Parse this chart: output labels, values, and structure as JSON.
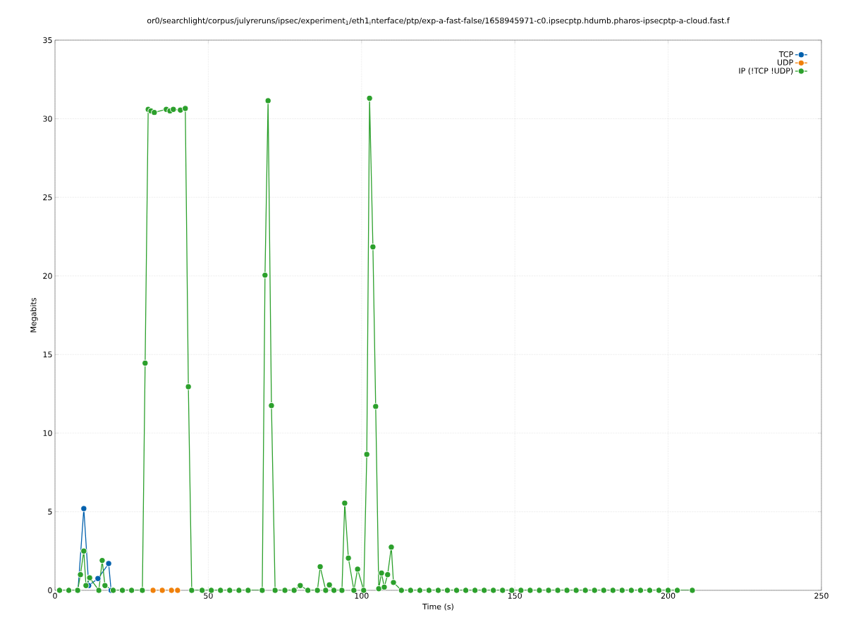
{
  "chart_data": {
    "type": "line",
    "title": "or0/searchlight/corpus/julyreruns/ipsec/experiment$_{1}$/eth1$_{i}$nterface/ptp/exp-a-fast-false/1658945971-c0.ipsecptp.hdumb.pharos-ipsecptp-a-cloud.fast.f",
    "xlabel": "Time (s)",
    "ylabel": "Megabits",
    "xlim": [
      0,
      250
    ],
    "ylim": [
      0,
      35
    ],
    "xticks": [
      0,
      50,
      100,
      150,
      200,
      250
    ],
    "yticks": [
      0,
      5,
      10,
      15,
      20,
      25,
      30,
      35
    ],
    "grid": true,
    "legend": "top right",
    "marker": "circle",
    "line_style": "solid",
    "series": [
      {
        "name": "TCP",
        "color": "#0060ad",
        "x": [
          7.5,
          9.4,
          11,
          14,
          17.5,
          18.3
        ],
        "values": [
          0,
          5.2,
          0.3,
          0.75,
          1.7,
          0
        ]
      },
      {
        "name": "UDP",
        "color": "#f0800a",
        "x": [
          32,
          35,
          38,
          40
        ],
        "values": [
          0,
          0,
          0,
          0
        ]
      },
      {
        "name": "IP (!TCP  !UDP)",
        "color": "#2ca02c",
        "x": [
          1.5,
          4.5,
          7.4,
          8.3,
          9.4,
          10.1,
          11.3,
          14.3,
          15.4,
          16.3,
          19,
          22,
          25,
          28.5,
          29.4,
          30.4,
          31.3,
          32.4,
          36.3,
          37.5,
          38.6,
          40.9,
          42.5,
          43.5,
          44.6,
          48,
          51,
          54,
          57,
          60,
          63,
          67.6,
          68.5,
          69.5,
          70.6,
          71.8,
          75,
          78,
          80,
          82.5,
          85.6,
          86.5,
          88.3,
          89.5,
          91,
          93.6,
          94.5,
          95.7,
          97.5,
          98.7,
          100.7,
          101.7,
          102.6,
          103.7,
          104.6,
          105.6,
          106.5,
          107.4,
          108.5,
          109.7,
          110.4,
          113,
          116,
          119,
          122,
          125,
          128,
          131,
          134,
          137,
          140,
          143,
          146,
          149,
          152,
          155,
          158,
          161,
          164,
          167,
          170,
          173,
          176,
          179,
          182,
          185,
          188,
          191,
          194,
          197,
          200,
          203,
          207.9
        ],
        "values": [
          0,
          0,
          0,
          1.0,
          2.5,
          0.3,
          0.8,
          0,
          1.9,
          0.3,
          0,
          0,
          0,
          0,
          14.45,
          30.6,
          30.5,
          30.4,
          30.6,
          30.5,
          30.6,
          30.55,
          30.65,
          12.95,
          0,
          0,
          0,
          0,
          0,
          0,
          0,
          0,
          20.05,
          31.15,
          11.75,
          0,
          0,
          0,
          0.3,
          0,
          0,
          1.5,
          0,
          0.35,
          0,
          0,
          5.55,
          2.05,
          0,
          1.35,
          0,
          8.65,
          31.3,
          21.85,
          11.7,
          0.1,
          1.1,
          0.2,
          1.0,
          2.75,
          0.5,
          0,
          0,
          0,
          0,
          0,
          0,
          0,
          0,
          0,
          0,
          0,
          0,
          0,
          0,
          0,
          0,
          0,
          0,
          0,
          0,
          0,
          0,
          0,
          0,
          0,
          0,
          0,
          0,
          0,
          0,
          0,
          0
        ]
      }
    ]
  }
}
